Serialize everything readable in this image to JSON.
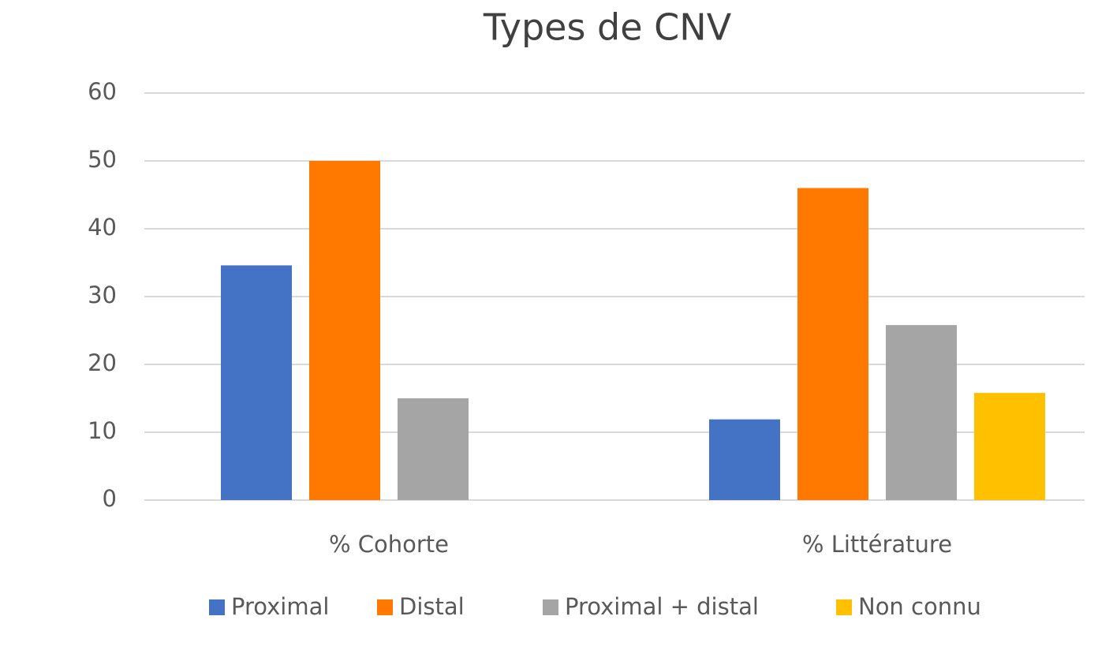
{
  "chart_data": {
    "type": "bar",
    "title": "Types de CNV",
    "categories": [
      "% Cohorte",
      "% Littérature"
    ],
    "series": [
      {
        "name": "Proximal",
        "color": "#4472c4",
        "values": [
          34.6,
          11.9
        ]
      },
      {
        "name": "Distal",
        "color": "#ff7800",
        "values": [
          50,
          46
        ]
      },
      {
        "name": "Proximal + distal",
        "color": "#a5a5a5",
        "values": [
          15,
          25.8
        ]
      },
      {
        "name": "Non connu",
        "color": "#ffc000",
        "values": [
          null,
          15.8
        ]
      }
    ],
    "ylim": [
      0,
      60
    ],
    "yticks": [
      0,
      10,
      20,
      30,
      40,
      50,
      60
    ],
    "grid": true,
    "legend": "bottom"
  }
}
